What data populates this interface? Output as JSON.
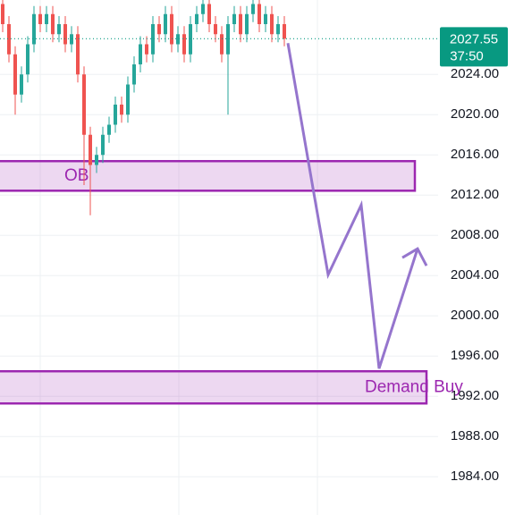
{
  "chart_data": {
    "type": "candlestick",
    "open": [
      2031,
      2029,
      2026,
      2022,
      2024,
      2027,
      2030,
      2029,
      2030,
      2028,
      2029,
      2027,
      2028,
      2024,
      2018,
      2015,
      2016,
      2018,
      2019,
      2021,
      2020,
      2023,
      2025,
      2027,
      2026,
      2029,
      2028,
      2030,
      2027,
      2028,
      2026,
      2029,
      2030,
      2031,
      2029,
      2028,
      2026,
      2029,
      2030,
      2028,
      2030,
      2031,
      2029,
      2030,
      2028,
      2029
    ],
    "high": [
      2031.8,
      2029.8,
      2026.8,
      2024.8,
      2027.8,
      2030.8,
      2030.8,
      2030.8,
      2030.8,
      2029.8,
      2029.8,
      2028.8,
      2028.8,
      2024.8,
      2018.8,
      2016.8,
      2018.8,
      2019.8,
      2021.8,
      2021.8,
      2023.8,
      2025.8,
      2027.8,
      2027.8,
      2029.8,
      2029.8,
      2030.8,
      2030.8,
      2028.8,
      2028.8,
      2029.8,
      2030.8,
      2031.8,
      2031.8,
      2029.8,
      2028.8,
      2029.8,
      2030.8,
      2030.8,
      2030.8,
      2031.8,
      2031.8,
      2030.8,
      2030.8,
      2029.8,
      2029.8
    ],
    "low": [
      2028.2,
      2025.2,
      2020,
      2021.2,
      2023.2,
      2026.2,
      2028.2,
      2028.2,
      2027.2,
      2027.2,
      2026.2,
      2026.2,
      2023.2,
      2013,
      2010,
      2014.2,
      2015.2,
      2017.2,
      2018.2,
      2019.2,
      2019.2,
      2022.2,
      2024.2,
      2025.2,
      2025.2,
      2027.2,
      2027.2,
      2026.2,
      2026.2,
      2025.2,
      2025.2,
      2028.2,
      2029.2,
      2028.2,
      2027.2,
      2025.2,
      2020,
      2028.2,
      2027.2,
      2027.2,
      2029.2,
      2028.2,
      2028.2,
      2027.2,
      2027.2,
      2026.8
    ],
    "close": [
      2029,
      2026,
      2022,
      2024,
      2027,
      2030,
      2029,
      2030,
      2028,
      2029,
      2027,
      2028,
      2024,
      2018,
      2015,
      2016,
      2018,
      2019,
      2021,
      2020,
      2023,
      2025,
      2027,
      2026,
      2029,
      2028,
      2030,
      2027,
      2028,
      2026,
      2029,
      2030,
      2031,
      2029,
      2028,
      2026,
      2029,
      2030,
      2028,
      2030,
      2031,
      2029,
      2030,
      2028,
      2029,
      2027.55
    ],
    "up_color": "#26a69a",
    "down_color": "#ef5350",
    "ylim": [
      1980.2,
      2031.4
    ],
    "yticks": [
      {
        "value": 2024,
        "label": "2024.00"
      },
      {
        "value": 2020,
        "label": "2020.00"
      },
      {
        "value": 2016,
        "label": "2016.00"
      },
      {
        "value": 2012,
        "label": "2012.00"
      },
      {
        "value": 2008,
        "label": "2008.00"
      },
      {
        "value": 2004,
        "label": "2004.00"
      },
      {
        "value": 2000,
        "label": "2000.00"
      },
      {
        "value": 1996,
        "label": "1996.00"
      },
      {
        "value": 1992,
        "label": "1992.00"
      },
      {
        "value": 1988,
        "label": "1988.00"
      },
      {
        "value": 1984,
        "label": "1984.00"
      }
    ],
    "grid": true,
    "last_price": 2027.55,
    "countdown": "37:50",
    "last_price_color": "#089981",
    "zones": [
      {
        "label": "OB",
        "top": 2015.38,
        "bottom": 2012.44
      },
      {
        "label": "Demand Buy",
        "top": 1994.49,
        "bottom": 1991.29
      }
    ],
    "zone_color": "#9c27b0",
    "projection": [
      2027.11,
      2012.71,
      2004.09,
      2011.02,
      1994.76,
      2006.67
    ],
    "projection_color": "#9575cd"
  }
}
